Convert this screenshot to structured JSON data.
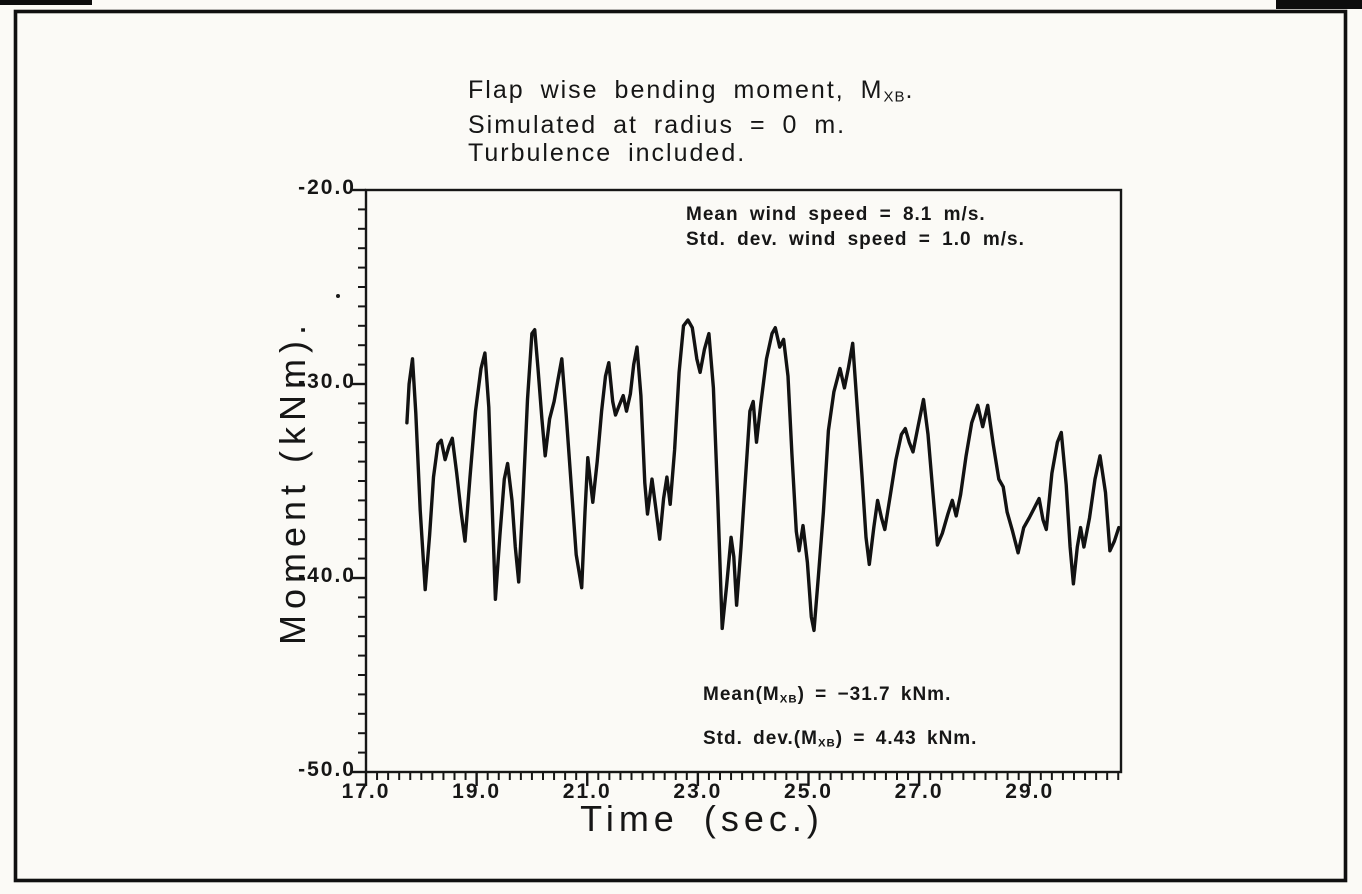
{
  "title": {
    "line1_pre": "Flap wise bending moment, M",
    "line1_sub": "XB",
    "line1_post": ".",
    "line2": "Simulated at radius = 0 m.",
    "line3": "Turbulence included."
  },
  "wind_stats": {
    "line1": "Mean wind speed = 8.1 m/s.",
    "line2": "Std. dev. wind speed = 1.0 m/s."
  },
  "moment_stats": {
    "mean_pre": "Mean(M",
    "mean_sub": "XB",
    "mean_post": ") = −31.7 kNm.",
    "std_pre": "Std. dev.(M",
    "std_sub": "XB",
    "std_post": ") = 4.43 kNm."
  },
  "axes": {
    "x": {
      "label": "Time (sec.)",
      "tick_values": [
        17,
        19,
        21,
        23,
        25,
        27,
        29
      ],
      "tick_labels": [
        "17.0",
        "19.0",
        "21.0",
        "23.0",
        "25.0",
        "27.0",
        "29.0"
      ],
      "minor_step": 0.2,
      "range": [
        17.0,
        30.65
      ]
    },
    "y": {
      "label": "Moment (kNm).",
      "tick_values": [
        -20,
        -30,
        -40,
        -50
      ],
      "tick_labels": [
        "-20.0",
        "-30.0",
        "-40.0",
        "-50.0"
      ],
      "minor_step": 1,
      "range": [
        -50.0,
        -20.0
      ]
    }
  },
  "chart_data": {
    "type": "line",
    "title": "Flap wise bending moment, M_XB. Simulated at radius = 0 m. Turbulence included.",
    "xlabel": "Time (sec.)",
    "ylabel": "Moment (kNm)",
    "xlim": [
      17.0,
      30.65
    ],
    "ylim": [
      -50.0,
      -20.0
    ],
    "grid": false,
    "legend": "none",
    "annotations": {
      "mean_wind_speed_ms": 8.1,
      "std_dev_wind_speed_ms": 1.0,
      "mean_moment_kNm": -31.7,
      "std_dev_moment_kNm": 4.43
    },
    "series": [
      {
        "name": "M_XB flapwise bending moment (turbulent simulation)",
        "points": [
          [
            17.74,
            -32.0
          ],
          [
            17.78,
            -30.0
          ],
          [
            17.84,
            -28.7
          ],
          [
            17.9,
            -31.5
          ],
          [
            17.98,
            -36.5
          ],
          [
            18.07,
            -40.6
          ],
          [
            18.15,
            -37.8
          ],
          [
            18.22,
            -34.8
          ],
          [
            18.3,
            -33.1
          ],
          [
            18.36,
            -32.9
          ],
          [
            18.43,
            -33.9
          ],
          [
            18.5,
            -33.2
          ],
          [
            18.56,
            -32.8
          ],
          [
            18.64,
            -34.6
          ],
          [
            18.72,
            -36.6
          ],
          [
            18.79,
            -38.1
          ],
          [
            18.88,
            -34.8
          ],
          [
            18.98,
            -31.4
          ],
          [
            19.08,
            -29.2
          ],
          [
            19.15,
            -28.4
          ],
          [
            19.22,
            -31.2
          ],
          [
            19.28,
            -36.2
          ],
          [
            19.34,
            -41.1
          ],
          [
            19.42,
            -37.8
          ],
          [
            19.5,
            -34.9
          ],
          [
            19.56,
            -34.1
          ],
          [
            19.64,
            -36.0
          ],
          [
            19.7,
            -38.4
          ],
          [
            19.76,
            -40.2
          ],
          [
            19.84,
            -35.8
          ],
          [
            19.92,
            -30.8
          ],
          [
            20.0,
            -27.4
          ],
          [
            20.05,
            -27.2
          ],
          [
            20.11,
            -29.2
          ],
          [
            20.18,
            -31.8
          ],
          [
            20.24,
            -33.7
          ],
          [
            20.32,
            -31.8
          ],
          [
            20.4,
            -30.9
          ],
          [
            20.47,
            -29.8
          ],
          [
            20.54,
            -28.7
          ],
          [
            20.62,
            -31.6
          ],
          [
            20.71,
            -35.2
          ],
          [
            20.8,
            -38.8
          ],
          [
            20.9,
            -40.5
          ],
          [
            20.96,
            -36.6
          ],
          [
            21.01,
            -33.8
          ],
          [
            21.06,
            -35.1
          ],
          [
            21.1,
            -36.1
          ],
          [
            21.18,
            -34.0
          ],
          [
            21.26,
            -31.4
          ],
          [
            21.33,
            -29.6
          ],
          [
            21.39,
            -28.9
          ],
          [
            21.46,
            -30.9
          ],
          [
            21.51,
            -31.6
          ],
          [
            21.58,
            -31.1
          ],
          [
            21.65,
            -30.6
          ],
          [
            21.71,
            -31.4
          ],
          [
            21.78,
            -30.5
          ],
          [
            21.84,
            -29.0
          ],
          [
            21.9,
            -28.1
          ],
          [
            21.97,
            -30.6
          ],
          [
            22.04,
            -35.1
          ],
          [
            22.09,
            -36.7
          ],
          [
            22.17,
            -34.9
          ],
          [
            22.24,
            -36.4
          ],
          [
            22.31,
            -38.0
          ],
          [
            22.38,
            -35.9
          ],
          [
            22.44,
            -34.8
          ],
          [
            22.5,
            -36.2
          ],
          [
            22.58,
            -33.4
          ],
          [
            22.66,
            -29.4
          ],
          [
            22.74,
            -27.0
          ],
          [
            22.82,
            -26.7
          ],
          [
            22.9,
            -27.1
          ],
          [
            22.98,
            -28.7
          ],
          [
            23.04,
            -29.4
          ],
          [
            23.12,
            -28.2
          ],
          [
            23.2,
            -27.4
          ],
          [
            23.28,
            -30.2
          ],
          [
            23.36,
            -36.0
          ],
          [
            23.44,
            -42.6
          ],
          [
            23.52,
            -40.4
          ],
          [
            23.6,
            -37.9
          ],
          [
            23.65,
            -38.9
          ],
          [
            23.7,
            -41.4
          ],
          [
            23.78,
            -38.4
          ],
          [
            23.86,
            -34.9
          ],
          [
            23.94,
            -31.4
          ],
          [
            24.0,
            -30.9
          ],
          [
            24.06,
            -33.0
          ],
          [
            24.14,
            -31.0
          ],
          [
            24.24,
            -28.7
          ],
          [
            24.34,
            -27.4
          ],
          [
            24.4,
            -27.1
          ],
          [
            24.48,
            -28.1
          ],
          [
            24.55,
            -27.7
          ],
          [
            24.63,
            -29.6
          ],
          [
            24.7,
            -33.6
          ],
          [
            24.78,
            -37.6
          ],
          [
            24.83,
            -38.6
          ],
          [
            24.9,
            -37.3
          ],
          [
            24.98,
            -39.2
          ],
          [
            25.05,
            -42.0
          ],
          [
            25.1,
            -42.7
          ],
          [
            25.18,
            -39.9
          ],
          [
            25.27,
            -36.6
          ],
          [
            25.36,
            -32.4
          ],
          [
            25.46,
            -30.4
          ],
          [
            25.57,
            -29.2
          ],
          [
            25.65,
            -30.2
          ],
          [
            25.72,
            -29.2
          ],
          [
            25.8,
            -27.9
          ],
          [
            25.88,
            -31.2
          ],
          [
            25.97,
            -34.8
          ],
          [
            26.04,
            -37.9
          ],
          [
            26.1,
            -39.3
          ],
          [
            26.18,
            -37.4
          ],
          [
            26.25,
            -36.0
          ],
          [
            26.32,
            -36.9
          ],
          [
            26.38,
            -37.5
          ],
          [
            26.48,
            -35.7
          ],
          [
            26.58,
            -33.9
          ],
          [
            26.68,
            -32.6
          ],
          [
            26.75,
            -32.3
          ],
          [
            26.82,
            -33.0
          ],
          [
            26.89,
            -33.5
          ],
          [
            26.98,
            -32.2
          ],
          [
            27.08,
            -30.8
          ],
          [
            27.16,
            -32.6
          ],
          [
            27.25,
            -35.6
          ],
          [
            27.33,
            -38.3
          ],
          [
            27.42,
            -37.7
          ],
          [
            27.52,
            -36.7
          ],
          [
            27.6,
            -36.0
          ],
          [
            27.67,
            -36.8
          ],
          [
            27.75,
            -35.7
          ],
          [
            27.85,
            -33.7
          ],
          [
            27.95,
            -32.0
          ],
          [
            28.06,
            -31.1
          ],
          [
            28.15,
            -32.2
          ],
          [
            28.24,
            -31.1
          ],
          [
            28.34,
            -33.1
          ],
          [
            28.44,
            -34.9
          ],
          [
            28.52,
            -35.3
          ],
          [
            28.59,
            -36.6
          ],
          [
            28.69,
            -37.6
          ],
          [
            28.79,
            -38.7
          ],
          [
            28.89,
            -37.4
          ],
          [
            28.99,
            -36.9
          ],
          [
            29.08,
            -36.4
          ],
          [
            29.17,
            -35.9
          ],
          [
            29.24,
            -37.0
          ],
          [
            29.3,
            -37.5
          ],
          [
            29.4,
            -34.6
          ],
          [
            29.5,
            -33.0
          ],
          [
            29.57,
            -32.5
          ],
          [
            29.66,
            -35.2
          ],
          [
            29.73,
            -38.4
          ],
          [
            29.79,
            -40.3
          ],
          [
            29.86,
            -38.4
          ],
          [
            29.92,
            -37.4
          ],
          [
            29.98,
            -38.4
          ],
          [
            30.08,
            -36.9
          ],
          [
            30.18,
            -34.9
          ],
          [
            30.27,
            -33.7
          ],
          [
            30.37,
            -35.6
          ],
          [
            30.45,
            -38.6
          ],
          [
            30.53,
            -38.1
          ],
          [
            30.61,
            -37.4
          ]
        ]
      }
    ]
  }
}
